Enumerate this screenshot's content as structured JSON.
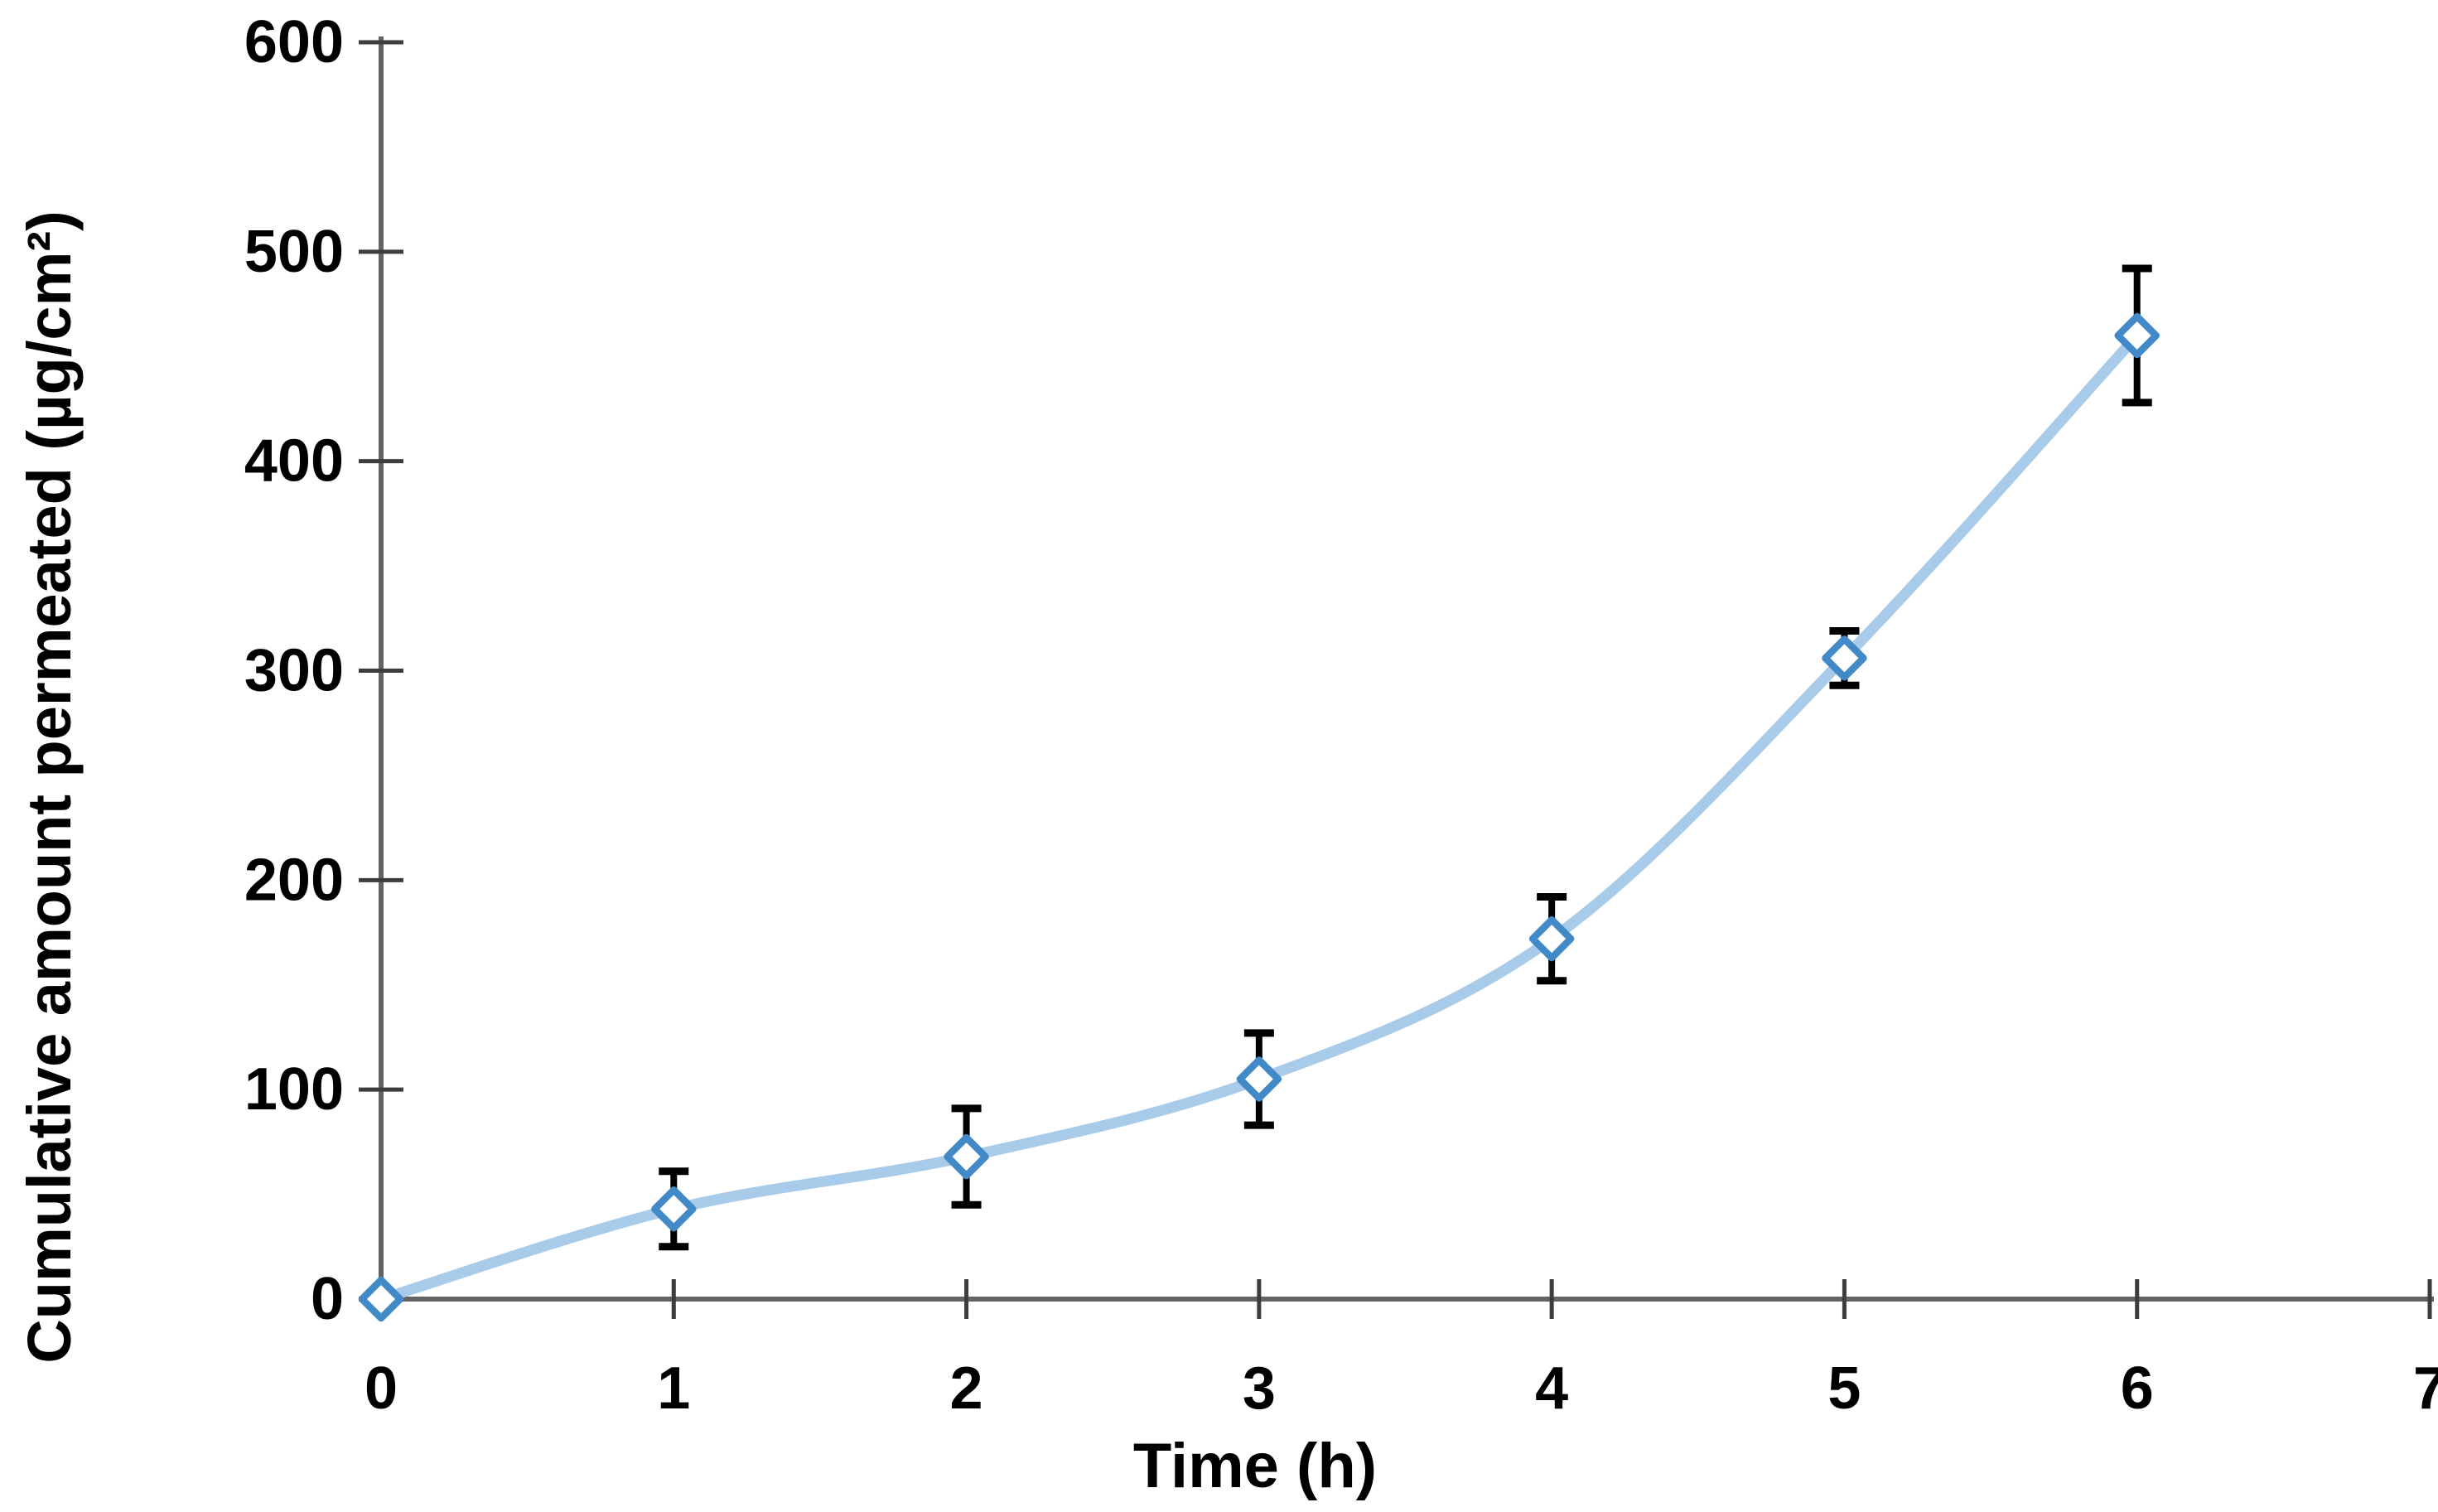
{
  "figure": {
    "background": "#ffffff"
  },
  "chart_data": {
    "type": "line",
    "title": "",
    "xlabel": "Time (h)",
    "ylabel": "Cumulative amount permeated (µg/cm²)",
    "x": [
      0,
      1,
      2,
      3,
      4,
      5,
      6
    ],
    "series": [
      {
        "name": "Cumulative amount permeated",
        "values": [
          0,
          43,
          68,
          105,
          172,
          306,
          460
        ],
        "error_bars": [
          0,
          18,
          23,
          22,
          20,
          13,
          32
        ],
        "line_color": "#A9CBEA",
        "line_smooth": true,
        "marker": "open-diamond",
        "marker_color": "#4289C8",
        "marker_fill": "#ffffff",
        "error_bar_color": "#000000"
      }
    ],
    "xlim": [
      0,
      7
    ],
    "ylim": [
      0,
      600
    ],
    "x_ticks": [
      0,
      1,
      2,
      3,
      4,
      5,
      6,
      7
    ],
    "y_ticks": [
      0,
      100,
      200,
      300,
      400,
      500,
      600
    ],
    "grid": false,
    "legend": false,
    "axis_color": "#636363",
    "tick_color": "#3d3d3d",
    "tick_label_color": "#000000",
    "axis_title_color": "#000000"
  }
}
